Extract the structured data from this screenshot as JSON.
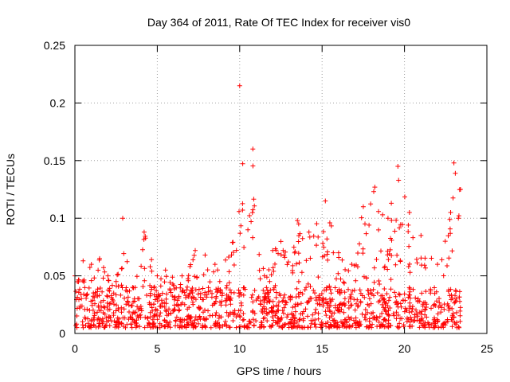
{
  "chart_data": {
    "type": "scatter",
    "title": "Day 364 of 2011, Rate Of TEC Index for receiver vis0",
    "xlabel": "GPS time / hours",
    "ylabel": "ROTI / TECUs",
    "xlim": [
      0,
      25
    ],
    "ylim": [
      0,
      0.25
    ],
    "x_ticks": [
      0,
      5,
      10,
      15,
      20,
      25
    ],
    "x_tick_labels": [
      "0",
      "5",
      "10",
      "15",
      "20",
      "25"
    ],
    "y_ticks": [
      0,
      0.05,
      0.1,
      0.15,
      0.2,
      0.25
    ],
    "y_tick_labels": [
      "0",
      "0.05",
      "0.1",
      "0.15",
      "0.2",
      "0.25"
    ],
    "grid": true,
    "marker": "+",
    "series": [
      {
        "name": "ROTI",
        "color": "#ff0000",
        "data_extent_hours": [
          0,
          23.4
        ],
        "baseline_range": [
          0.005,
          0.04
        ],
        "envelope": [
          [
            0.0,
            0.05
          ],
          [
            0.5,
            0.063
          ],
          [
            1.0,
            0.06
          ],
          [
            1.5,
            0.065
          ],
          [
            2.0,
            0.05
          ],
          [
            2.5,
            0.045
          ],
          [
            2.9,
            0.1
          ],
          [
            3.5,
            0.04
          ],
          [
            4.2,
            0.088
          ],
          [
            5.0,
            0.05
          ],
          [
            5.5,
            0.055
          ],
          [
            6.5,
            0.05
          ],
          [
            7.3,
            0.072
          ],
          [
            7.9,
            0.068
          ],
          [
            8.5,
            0.06
          ],
          [
            9.5,
            0.068
          ],
          [
            10.0,
            0.215
          ],
          [
            10.5,
            0.09
          ],
          [
            10.8,
            0.16
          ],
          [
            11.5,
            0.05
          ],
          [
            12.0,
            0.072
          ],
          [
            13.5,
            0.098
          ],
          [
            14.2,
            0.088
          ],
          [
            15.2,
            0.115
          ],
          [
            16.0,
            0.07
          ],
          [
            16.8,
            0.06
          ],
          [
            17.5,
            0.11
          ],
          [
            18.2,
            0.127
          ],
          [
            19.0,
            0.1
          ],
          [
            19.6,
            0.145
          ],
          [
            20.3,
            0.105
          ],
          [
            21.0,
            0.085
          ],
          [
            22.0,
            0.06
          ],
          [
            22.8,
            0.105
          ],
          [
            23.0,
            0.148
          ],
          [
            23.4,
            0.125
          ]
        ]
      }
    ]
  }
}
